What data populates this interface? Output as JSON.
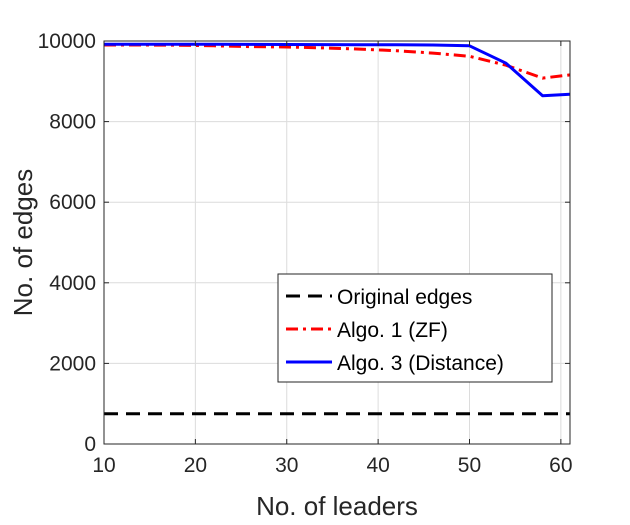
{
  "chart_data": {
    "type": "line",
    "title": "",
    "xlabel": "No. of leaders",
    "ylabel": "No. of edges",
    "xlim": [
      10,
      61
    ],
    "ylim": [
      0,
      10000
    ],
    "xticks": [
      10,
      20,
      30,
      40,
      50,
      60
    ],
    "yticks": [
      0,
      2000,
      4000,
      6000,
      8000,
      10000
    ],
    "grid": true,
    "legend_position": "bottom-right",
    "series": [
      {
        "name": "Original edges",
        "color": "#000000",
        "line_style": "dashed",
        "x": [
          10,
          61
        ],
        "y": [
          750,
          750
        ]
      },
      {
        "name": "Algo. 1 (ZF)",
        "color": "#ff0000",
        "line_style": "dash-dot",
        "x": [
          10,
          14,
          18,
          22,
          26,
          30,
          34,
          38,
          42,
          46,
          50,
          54,
          58,
          61
        ],
        "y": [
          9900,
          9900,
          9895,
          9880,
          9860,
          9850,
          9830,
          9800,
          9760,
          9700,
          9620,
          9400,
          9080,
          9160
        ]
      },
      {
        "name": "Algo. 3 (Distance)",
        "color": "#0000ff",
        "line_style": "solid",
        "x": [
          10,
          14,
          18,
          22,
          26,
          30,
          34,
          38,
          42,
          46,
          50,
          54,
          58,
          61
        ],
        "y": [
          9920,
          9920,
          9920,
          9918,
          9915,
          9912,
          9910,
          9908,
          9905,
          9900,
          9880,
          9450,
          8640,
          8680
        ]
      }
    ]
  }
}
